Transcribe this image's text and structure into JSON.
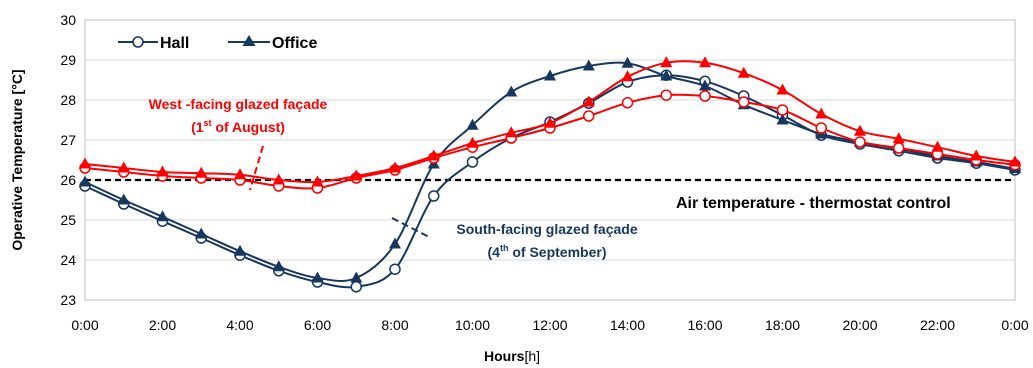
{
  "chart_data": {
    "type": "line",
    "xlabel": "Hours",
    "xlabel_unit": "[h]",
    "ylabel": "Operative Temperature [°C]",
    "ylim": [
      23,
      30
    ],
    "yticks": [
      "23",
      "24",
      "25",
      "26",
      "27",
      "28",
      "29",
      "30"
    ],
    "xticks": [
      "0:00",
      "2:00",
      "4:00",
      "6:00",
      "8:00",
      "10:00",
      "12:00",
      "14:00",
      "16:00",
      "18:00",
      "20:00",
      "22:00",
      "0:00"
    ],
    "x": [
      0,
      1,
      2,
      3,
      4,
      5,
      6,
      7,
      8,
      9,
      10,
      11,
      12,
      13,
      14,
      15,
      16,
      17,
      18,
      19,
      20,
      21,
      22,
      23,
      24
    ],
    "grid": true,
    "legend_position": "top-left",
    "legend": {
      "hall": "Hall",
      "office": "Office"
    },
    "series": [
      {
        "name": "Hall",
        "group": "south",
        "marker": "circle",
        "color": "#17375e",
        "values": [
          25.85,
          25.4,
          24.97,
          24.55,
          24.12,
          23.73,
          23.45,
          23.33,
          23.77,
          25.6,
          26.45,
          27.05,
          27.45,
          27.92,
          28.45,
          28.62,
          28.47,
          28.1,
          27.62,
          27.12,
          26.9,
          26.73,
          26.55,
          26.42,
          26.25
        ]
      },
      {
        "name": "Office",
        "group": "south",
        "marker": "triangle",
        "color": "#17375e",
        "values": [
          25.95,
          25.5,
          25.08,
          24.65,
          24.22,
          23.83,
          23.55,
          23.55,
          24.4,
          26.4,
          27.37,
          28.2,
          28.6,
          28.85,
          28.92,
          28.6,
          28.35,
          27.88,
          27.5,
          27.15,
          26.95,
          26.78,
          26.6,
          26.45,
          26.28
        ]
      },
      {
        "name": "Hall",
        "group": "west",
        "marker": "circle",
        "color": "#ff0000",
        "values": [
          26.3,
          26.2,
          26.1,
          26.05,
          26.0,
          25.85,
          25.8,
          26.05,
          26.25,
          26.55,
          26.82,
          27.05,
          27.3,
          27.6,
          27.93,
          28.12,
          28.1,
          27.95,
          27.75,
          27.3,
          26.95,
          26.8,
          26.65,
          26.5,
          26.38
        ]
      },
      {
        "name": "Office",
        "group": "west",
        "marker": "triangle",
        "color": "#ff0000",
        "values": [
          26.4,
          26.3,
          26.2,
          26.17,
          26.13,
          26.0,
          25.95,
          26.1,
          26.3,
          26.6,
          26.92,
          27.18,
          27.42,
          27.95,
          28.58,
          28.93,
          28.93,
          28.67,
          28.25,
          27.65,
          27.22,
          27.03,
          26.82,
          26.6,
          26.45
        ]
      }
    ],
    "reference_line": {
      "value": 26.0,
      "label": "Air temperature - thermostat control",
      "color": "#000000"
    },
    "annotations": {
      "west_line1": "West -facing glazed façade",
      "west_pre": "(1",
      "west_sup": "st",
      "west_post": " of August)",
      "south_line1": "South-facing glazed façade",
      "south_pre": "(4",
      "south_sup": "th",
      "south_post": " of September)",
      "west_color": "#ff0000",
      "south_color": "#17375e"
    }
  }
}
